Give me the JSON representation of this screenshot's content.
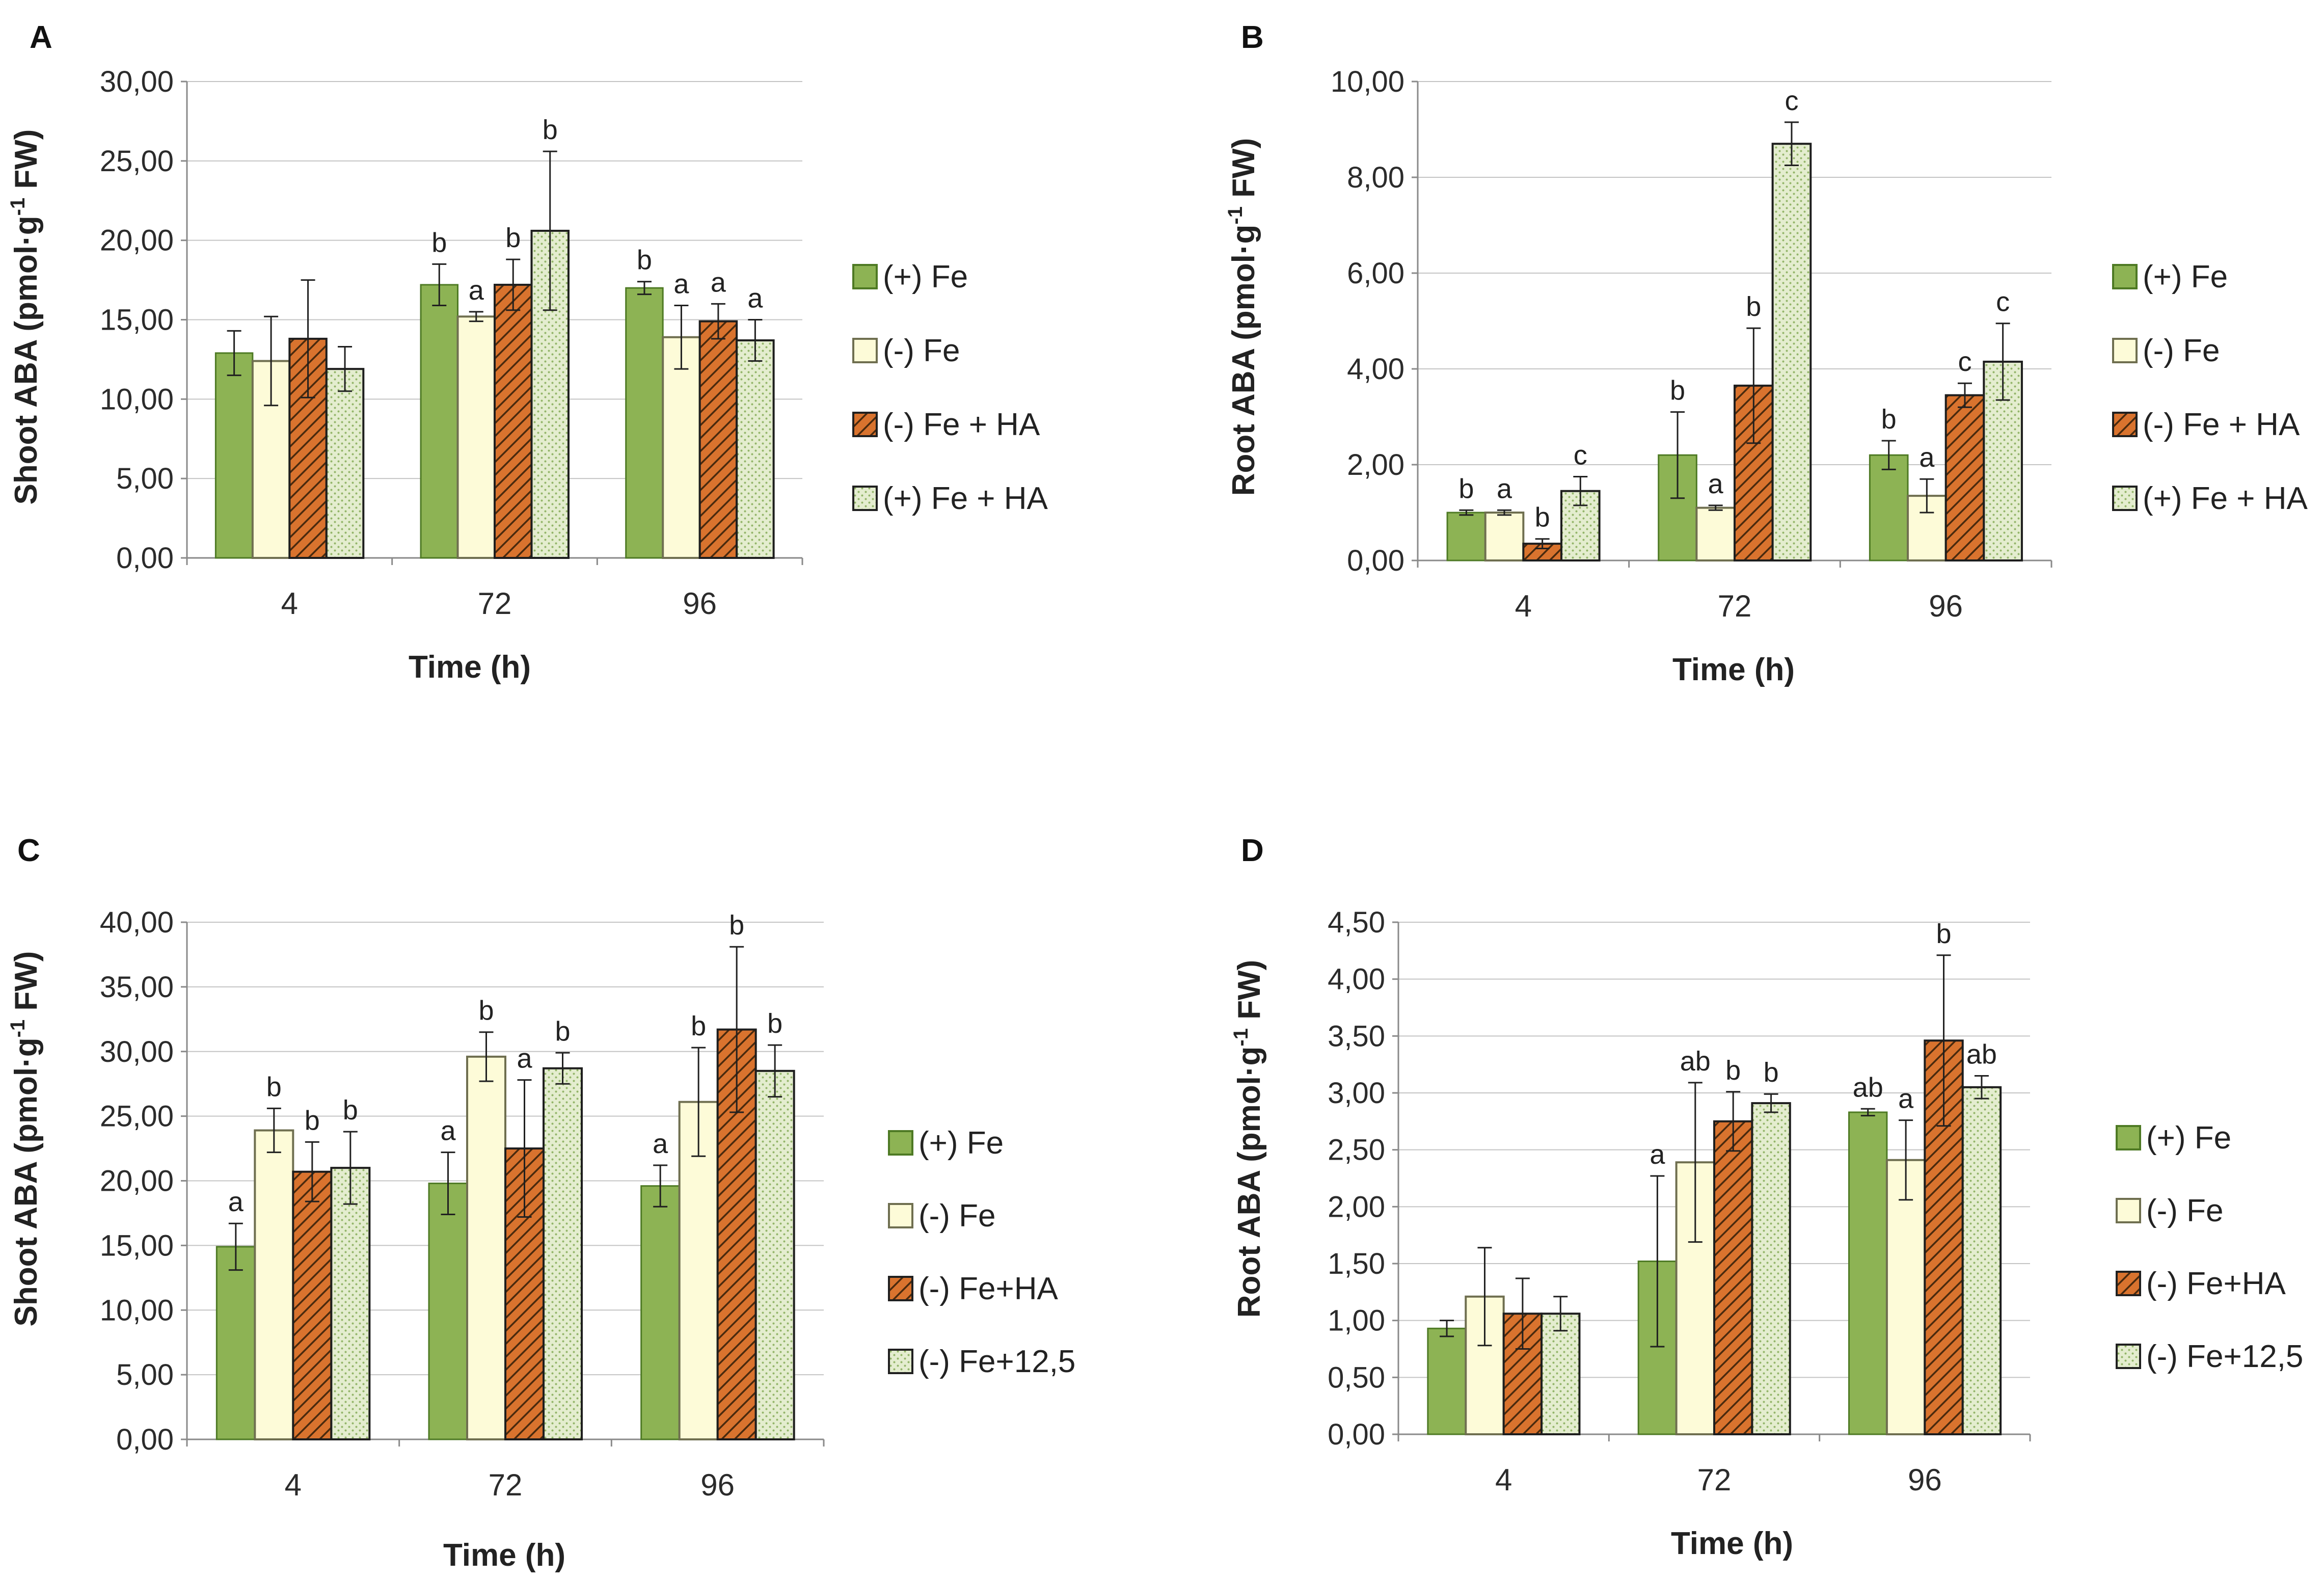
{
  "colors": {
    "plus_fe_fill": "#8db354",
    "plus_fe_stroke": "#4e7a24",
    "minus_fe_fill": "#fdfbd8",
    "minus_fe_stroke": "#6f6f50",
    "hatch_bg": "#d9732e",
    "hatch_line": "#4a2a0e",
    "dots_bg": "#e4edcf",
    "dots_fg": "#93b569",
    "grid": "#c4c4c4",
    "axis": "#8a8a8a",
    "errorbar": "#202020"
  },
  "icons": {
    "plus_fe": "solid-green-swatch",
    "minus_fe": "pale-yellow-swatch",
    "minus_fe_ha": "orange-diagonal-hatch-swatch",
    "fourth": "light-green-dotted-swatch"
  },
  "chart_data": [
    {
      "panel": "A",
      "type": "bar",
      "title": "",
      "xlabel": "Time (h)",
      "ylabel_main": "Shoot ABA (pmol·g",
      "ylabel_sup": "-1",
      "ylabel_end": " FW)",
      "ylim": [
        0,
        30
      ],
      "ytick_labels": [
        "0,00",
        "5,00",
        "10,00",
        "15,00",
        "20,00",
        "25,00",
        "30,00"
      ],
      "categories": [
        "4",
        "72",
        "96"
      ],
      "series": [
        {
          "name": "(+) Fe",
          "values": [
            12.9,
            17.2,
            17.0
          ],
          "errors": [
            1.4,
            1.3,
            0.4
          ],
          "letters": [
            "",
            "b",
            "b"
          ]
        },
        {
          "name": "(-) Fe",
          "values": [
            12.4,
            15.2,
            13.9
          ],
          "errors": [
            2.8,
            0.3,
            2.0
          ],
          "letters": [
            "",
            "a",
            "a"
          ]
        },
        {
          "name": "(-) Fe + HA",
          "values": [
            13.8,
            17.2,
            14.9
          ],
          "errors": [
            3.7,
            1.6,
            1.1
          ],
          "letters": [
            "",
            "b",
            "a"
          ]
        },
        {
          "name": "(+) Fe + HA",
          "values": [
            11.9,
            20.6,
            13.7
          ],
          "errors": [
            1.4,
            5.0,
            1.3
          ],
          "letters": [
            "",
            "b",
            "a"
          ]
        }
      ]
    },
    {
      "panel": "B",
      "type": "bar",
      "title": "",
      "xlabel": "Time (h)",
      "ylabel_main": "Root ABA (pmol·g",
      "ylabel_sup": "-1",
      "ylabel_end": " FW)",
      "ylim": [
        0,
        10
      ],
      "ytick_labels": [
        "0,00",
        "2,00",
        "4,00",
        "6,00",
        "8,00",
        "10,00"
      ],
      "categories": [
        "4",
        "72",
        "96"
      ],
      "series": [
        {
          "name": "(+) Fe",
          "values": [
            1.0,
            2.2,
            2.2
          ],
          "errors": [
            0.05,
            0.9,
            0.3
          ],
          "letters": [
            "b",
            "b",
            "b"
          ]
        },
        {
          "name": "(-) Fe",
          "values": [
            1.0,
            1.1,
            1.35
          ],
          "errors": [
            0.05,
            0.05,
            0.35
          ],
          "letters": [
            "a",
            "a",
            "a"
          ]
        },
        {
          "name": "(-) Fe + HA",
          "values": [
            0.35,
            3.65,
            3.45
          ],
          "errors": [
            0.1,
            1.2,
            0.25
          ],
          "letters": [
            "b",
            "b",
            "c"
          ]
        },
        {
          "name": "(+) Fe + HA",
          "values": [
            1.45,
            8.7,
            4.15
          ],
          "errors": [
            0.3,
            0.45,
            0.8
          ],
          "letters": [
            "c",
            "c",
            "c"
          ]
        }
      ]
    },
    {
      "panel": "C",
      "type": "bar",
      "title": "",
      "xlabel": "Time (h)",
      "ylabel_main": "Shoot ABA (pmol·g",
      "ylabel_sup": "-1",
      "ylabel_end": " FW)",
      "ylim": [
        0,
        40
      ],
      "ytick_labels": [
        "0,00",
        "5,00",
        "10,00",
        "15,00",
        "20,00",
        "25,00",
        "30,00",
        "35,00",
        "40,00"
      ],
      "categories": [
        "4",
        "72",
        "96"
      ],
      "series": [
        {
          "name": "(+) Fe",
          "values": [
            14.9,
            19.8,
            19.6
          ],
          "errors": [
            1.8,
            2.4,
            1.6
          ],
          "letters": [
            "a",
            "a",
            "a"
          ]
        },
        {
          "name": "(-) Fe",
          "values": [
            23.9,
            29.6,
            26.1
          ],
          "errors": [
            1.7,
            1.9,
            4.2
          ],
          "letters": [
            "b",
            "b",
            "b"
          ]
        },
        {
          "name": "(-) Fe+HA",
          "values": [
            20.7,
            22.5,
            31.7
          ],
          "errors": [
            2.3,
            5.3,
            6.4
          ],
          "letters": [
            "b",
            "a",
            "b"
          ]
        },
        {
          "name": "(-) Fe+12,5",
          "values": [
            21.0,
            28.7,
            28.5
          ],
          "errors": [
            2.8,
            1.2,
            2.0
          ],
          "letters": [
            "b",
            "b",
            "b"
          ]
        }
      ]
    },
    {
      "panel": "D",
      "type": "bar",
      "title": "",
      "xlabel": "Time (h)",
      "ylabel_main": "Root ABA (pmol·g",
      "ylabel_sup": "-1",
      "ylabel_end": " FW)",
      "ylim": [
        0,
        4.5
      ],
      "ytick_labels": [
        "0,00",
        "0,50",
        "1,00",
        "1,50",
        "2,00",
        "2,50",
        "3,00",
        "3,50",
        "4,00",
        "4,50"
      ],
      "categories": [
        "4",
        "72",
        "96"
      ],
      "series": [
        {
          "name": "(+) Fe",
          "values": [
            0.93,
            1.52,
            2.83
          ],
          "errors": [
            0.07,
            0.75,
            0.03
          ],
          "letters": [
            "",
            "a",
            "ab"
          ]
        },
        {
          "name": "(-) Fe",
          "values": [
            1.21,
            2.39,
            2.41
          ],
          "errors": [
            0.43,
            0.7,
            0.35
          ],
          "letters": [
            "",
            "ab",
            "a"
          ]
        },
        {
          "name": "(-) Fe+HA",
          "values": [
            1.06,
            2.75,
            3.46
          ],
          "errors": [
            0.31,
            0.26,
            0.75
          ],
          "letters": [
            "",
            "b",
            "b"
          ]
        },
        {
          "name": "(-) Fe+12,5",
          "values": [
            1.06,
            2.91,
            3.05
          ],
          "errors": [
            0.15,
            0.08,
            0.1
          ],
          "letters": [
            "",
            "b",
            "ab"
          ]
        }
      ]
    }
  ]
}
